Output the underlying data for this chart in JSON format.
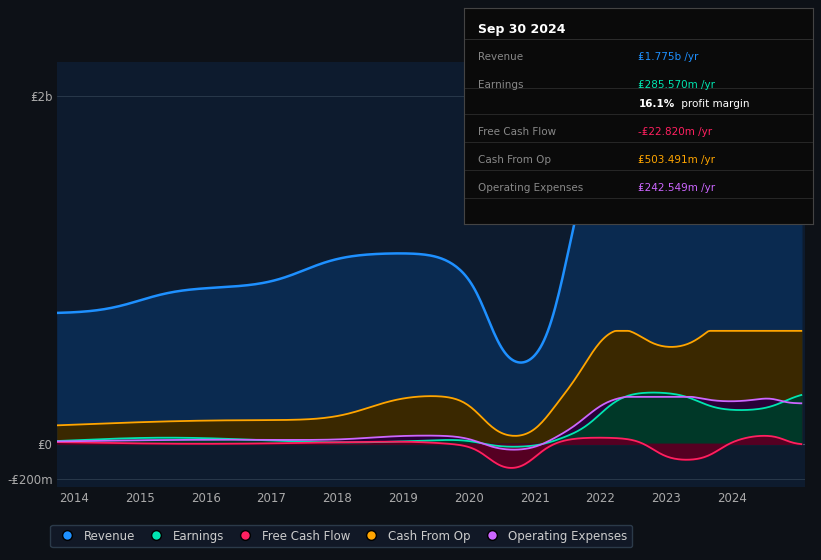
{
  "bg_color": "#0d1117",
  "plot_bg_color": "#0d1b2e",
  "info_title": "Sep 30 2024",
  "info_rows": [
    {
      "label": "Revenue",
      "value": "₤1.775b /yr",
      "color": "#1e90ff"
    },
    {
      "label": "Earnings",
      "value": "₤285.570m /yr",
      "color": "#00e5b0"
    },
    {
      "label": "",
      "value": "16.1% profit margin",
      "color": "#ffffff"
    },
    {
      "label": "Free Cash Flow",
      "value": "-₤22.820m /yr",
      "color": "#ff2060"
    },
    {
      "label": "Cash From Op",
      "value": "₤503.491m /yr",
      "color": "#ffa500"
    },
    {
      "label": "Operating Expenses",
      "value": "₤242.549m /yr",
      "color": "#cc66ff"
    }
  ],
  "ylim": [
    -250000000,
    2200000000
  ],
  "ytick_neg_value": -200000000,
  "ytick_neg_label": "-₤200m",
  "ytick_zero_label": "₤0",
  "ytick_top_value": 2000000000,
  "ytick_top_label": "₤2b",
  "revenue_color": "#1e90ff",
  "earnings_color": "#00e5b0",
  "fcf_color": "#ff2060",
  "cashfromop_color": "#ffa500",
  "opex_color": "#cc66ff",
  "revenue_fill": "#0a2a50",
  "earnings_fill": "#003828",
  "fcf_fill": "#550022",
  "cashfromop_fill": "#3a2800",
  "opex_fill": "#280038",
  "legend": [
    {
      "label": "Revenue",
      "color": "#1e90ff"
    },
    {
      "label": "Earnings",
      "color": "#00e5b0"
    },
    {
      "label": "Free Cash Flow",
      "color": "#ff2060"
    },
    {
      "label": "Cash From Op",
      "color": "#ffa500"
    },
    {
      "label": "Operating Expenses",
      "color": "#cc66ff"
    }
  ]
}
